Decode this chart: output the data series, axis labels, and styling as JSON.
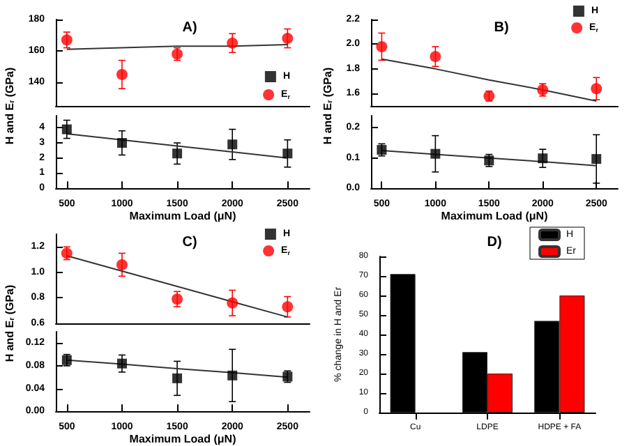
{
  "chart_data": [
    {
      "type": "scatter",
      "title": "A)",
      "x": [
        500,
        1000,
        1500,
        2000,
        2500
      ],
      "xlim": [
        400,
        2700
      ],
      "ylim": [
        125,
        180
      ],
      "yticks": [
        140,
        160,
        180
      ],
      "tick_labels": "y",
      "legend": "right",
      "series": [
        {
          "name": "E$_{r}$",
          "color": "#ff0000",
          "marker": "circle",
          "values": [
            167,
            145,
            158,
            165,
            168
          ],
          "errors": [
            5,
            9,
            4,
            6,
            6
          ]
        },
        {
          "type": "line",
          "color": "#333333",
          "marker": "none",
          "values": [
            161,
            162,
            163,
            163,
            164
          ]
        }
      ]
    },
    {
      "type": "scatter",
      "xlabel": "Maximum Load (μN)",
      "ylabel": "H and E$_{r}$ (GPa)",
      "x": [
        500,
        1000,
        1500,
        2000,
        2500
      ],
      "xlim": [
        400,
        2700
      ],
      "xticks": [
        500,
        1000,
        1500,
        2000,
        2500
      ],
      "ylim": [
        0,
        4.8
      ],
      "yticks": [
        0,
        1,
        2,
        3,
        4
      ],
      "legend": "right",
      "series": [
        {
          "name": "H",
          "color": "#000000",
          "marker": "square",
          "values": [
            3.9,
            3.0,
            2.3,
            2.9,
            2.3
          ],
          "errors": [
            0.6,
            0.8,
            0.7,
            1.0,
            0.9
          ]
        },
        {
          "type": "line",
          "color": "#333333",
          "marker": "none",
          "values": [
            3.6,
            3.2,
            2.8,
            2.4,
            2.0
          ]
        }
      ]
    },
    {
      "type": "scatter",
      "title": "B)",
      "x": [
        500,
        1000,
        1500,
        2000,
        2500
      ],
      "xlim": [
        400,
        2700
      ],
      "ylim": [
        1.5,
        2.2
      ],
      "yticks": [
        1.6,
        1.8,
        {
          "value": 2,
          "label": "2.0"
        },
        2.2
      ],
      "tick_labels": "y",
      "legend": "top right",
      "series": [
        {
          "name": "E$_{r}$",
          "color": "#ff0000",
          "marker": "circle",
          "values": [
            1.98,
            1.9,
            1.58,
            1.63,
            1.64
          ],
          "errors": [
            0.11,
            0.08,
            0.04,
            0.05,
            0.09
          ]
        },
        {
          "type": "line",
          "color": "#333333",
          "marker": "none",
          "values": [
            1.88,
            1.8,
            1.71,
            1.63,
            1.54
          ]
        }
      ]
    },
    {
      "type": "scatter",
      "xlabel": "Maximum Load (μN)",
      "ylabel": "H and E$_{r}$ (GPa)",
      "x": [
        500,
        1000,
        1500,
        2000,
        2500
      ],
      "xlim": [
        400,
        2700
      ],
      "xticks": [
        500,
        1000,
        1500,
        2000,
        2500
      ],
      "ylim": [
        0,
        0.24
      ],
      "yticks": [
        {
          "value": 0,
          "label": "0.0"
        },
        0.1,
        0.2
      ],
      "legend": "top right",
      "series": [
        {
          "name": "H",
          "color": "#000000",
          "marker": "square",
          "values": [
            0.127,
            0.114,
            0.092,
            0.099,
            0.097
          ],
          "errors": [
            0.02,
            0.06,
            0.02,
            0.03,
            0.08
          ]
        },
        {
          "type": "line",
          "color": "#333333",
          "marker": "none",
          "values": [
            0.125,
            0.112,
            0.1,
            0.088,
            0.075
          ]
        }
      ]
    },
    {
      "type": "scatter",
      "title": "C)",
      "x": [
        500,
        1000,
        1500,
        2000,
        2500
      ],
      "xlim": [
        400,
        2700
      ],
      "ylim": [
        0.6,
        1.3
      ],
      "yticks": [
        0.6,
        0.8,
        {
          "value": 1,
          "label": "1.0"
        },
        1.2
      ],
      "tick_labels": "y",
      "legend": "top right",
      "series": [
        {
          "name": "E$_{r}$",
          "color": "#ff0000",
          "marker": "circle",
          "values": [
            1.15,
            1.06,
            0.79,
            0.76,
            0.73
          ],
          "errors": [
            0.05,
            0.09,
            0.06,
            0.1,
            0.08
          ]
        },
        {
          "type": "line",
          "color": "#333333",
          "marker": "none",
          "values": [
            1.13,
            1.01,
            0.89,
            0.77,
            0.65
          ]
        }
      ]
    },
    {
      "type": "scatter",
      "xlabel": "Maximum Load (μN)",
      "ylabel": "H and E$_{r}$ (GPa)",
      "x": [
        500,
        1000,
        1500,
        2000,
        2500
      ],
      "xlim": [
        400,
        2700
      ],
      "xticks": [
        500,
        1000,
        1500,
        2000,
        2500
      ],
      "ylim": [
        0,
        0.14
      ],
      "yticks": [
        {
          "value": 0,
          "label": "0.00"
        },
        0.04,
        0.08,
        0.12
      ],
      "legend": "top right",
      "series": [
        {
          "name": "H",
          "color": "#000000",
          "marker": "square",
          "values": [
            0.09,
            0.084,
            0.058,
            0.063,
            0.061
          ],
          "errors": [
            0.01,
            0.015,
            0.03,
            0.046,
            0.01
          ]
        },
        {
          "type": "line",
          "color": "#333333",
          "marker": "none",
          "values": [
            0.09,
            0.083,
            0.075,
            0.068,
            0.06
          ]
        }
      ]
    },
    {
      "type": "bar",
      "title": "D)",
      "ylabel": "% change in H and Er",
      "categories": [
        "Cu",
        "LDPE",
        "HDPE + FA"
      ],
      "ylim": [
        0,
        80
      ],
      "yticks": [
        0,
        10,
        20,
        30,
        40,
        50,
        60,
        70,
        80
      ],
      "legend": "top right",
      "series": [
        {
          "name": "H",
          "color": "#000000",
          "values": [
            71,
            31,
            47
          ]
        },
        {
          "name": "Er",
          "color": "#ff0000",
          "values": [
            null,
            20,
            60
          ]
        }
      ]
    }
  ]
}
